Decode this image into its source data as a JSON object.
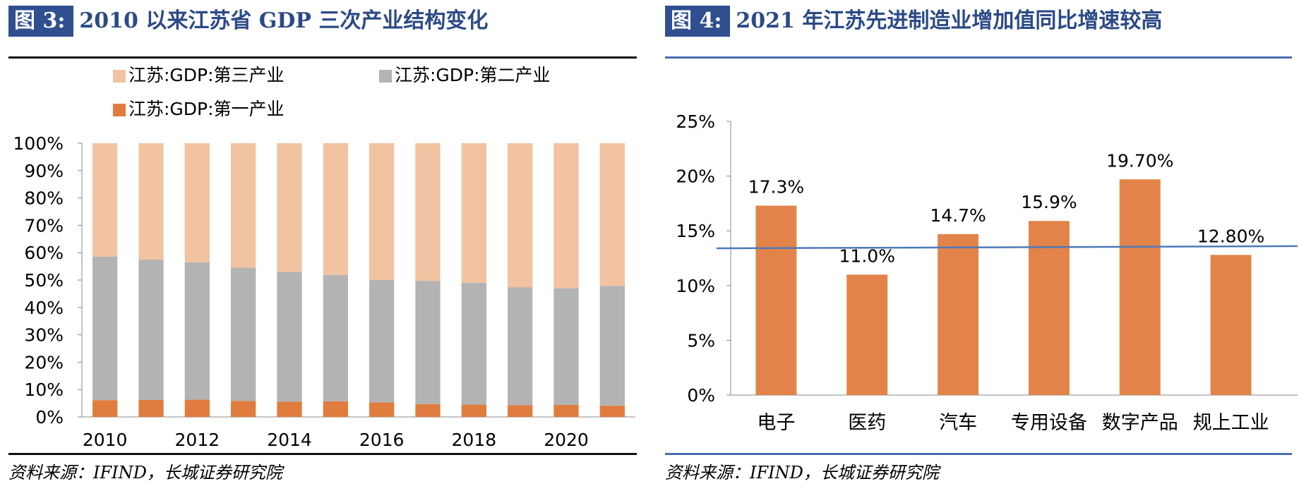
{
  "figures": [
    {
      "badge": "图 3:",
      "title": "2010 以来江苏省 GDP 三次产业结构变化",
      "source": "资料来源：IFIND，长城证券研究院"
    },
    {
      "badge": "图 4:",
      "title": "2021 年江苏先进制造业增加值同比增速较高",
      "source": "资料来源：IFIND，长城证券研究院"
    }
  ],
  "colors": {
    "primary": "#f2c3a0",
    "secondary": "#b3b3b3",
    "tertiary": "#e07c3e",
    "bar": "#e2844a",
    "trend": "#4e79b8",
    "title_blue": "#2b4a86",
    "badge_bg": "#2f4f8f",
    "rule_dark": "#111111",
    "rule_blue": "#4a6db0"
  },
  "chart_data": [
    {
      "type": "bar",
      "stacked": true,
      "percent": true,
      "title": "2010 以来江苏省 GDP 三次产业结构变化",
      "categories": [
        "2010",
        "2011",
        "2012",
        "2013",
        "2014",
        "2015",
        "2016",
        "2017",
        "2018",
        "2019",
        "2020",
        "2021"
      ],
      "x_tick_labels": [
        "2010",
        "",
        "2012",
        "",
        "2014",
        "",
        "2016",
        "",
        "2018",
        "",
        "2020",
        ""
      ],
      "series": [
        {
          "name": "江苏:GDP:第一产业",
          "values": [
            6.1,
            6.2,
            6.3,
            5.8,
            5.6,
            5.7,
            5.3,
            4.7,
            4.5,
            4.3,
            4.4,
            4.1
          ]
        },
        {
          "name": "江苏:GDP:第二产业",
          "values": [
            52.5,
            51.3,
            50.2,
            48.7,
            47.4,
            46.1,
            44.7,
            45.0,
            44.5,
            43.1,
            42.6,
            43.8
          ]
        },
        {
          "name": "江苏:GDP:第三产业",
          "values": [
            41.4,
            42.5,
            43.5,
            45.5,
            47.0,
            48.2,
            50.0,
            50.3,
            51.0,
            52.6,
            53.0,
            52.1
          ]
        }
      ],
      "legend": [
        "江苏:GDP:第三产业",
        "江苏:GDP:第二产业",
        "江苏:GDP:第一产业"
      ],
      "y_ticks": [
        "0%",
        "10%",
        "20%",
        "30%",
        "40%",
        "50%",
        "60%",
        "70%",
        "80%",
        "90%",
        "100%"
      ],
      "ylim": [
        0,
        100
      ],
      "xlabel": "",
      "ylabel": "",
      "legend_position": "top"
    },
    {
      "type": "bar",
      "title": "2021 年江苏先进制造业增加值同比增速较高",
      "categories": [
        "电子",
        "医药",
        "汽车",
        "专用设备",
        "数字产品",
        "规上工业"
      ],
      "values": [
        17.3,
        11.0,
        14.7,
        15.9,
        19.7,
        12.8
      ],
      "data_labels": [
        "17.3%",
        "11.0%",
        "14.7%",
        "15.9%",
        "19.70%",
        "12.80%"
      ],
      "y_ticks": [
        "0%",
        "5%",
        "10%",
        "15%",
        "20%",
        "25%"
      ],
      "ylim": [
        0,
        25
      ],
      "reference_line": {
        "from": 13.4,
        "to": 13.6
      },
      "xlabel": "",
      "ylabel": ""
    }
  ]
}
